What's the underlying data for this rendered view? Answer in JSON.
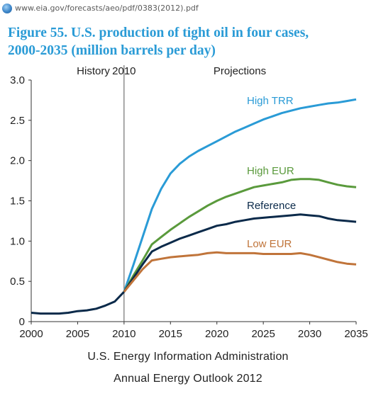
{
  "browser": {
    "url": "www.eia.gov/forecasts/aeo/pdf/0383(2012).pdf"
  },
  "figure": {
    "title_line1": "Figure 55. U.S. production of tight oil in four cases,",
    "title_line2": "2000-2035 (million barrels per day)",
    "title_color": "#2a9bd6"
  },
  "footer": {
    "line1": "U.S. Energy Information Administration",
    "line2": "Annual Energy Outlook 2012"
  },
  "chart_data": {
    "type": "line",
    "title": "",
    "xlabel": "",
    "ylabel": "",
    "xlim": [
      2000,
      2035
    ],
    "ylim": [
      0,
      3.0
    ],
    "xticks": [
      "2000",
      "2005",
      "2010",
      "2015",
      "2020",
      "2025",
      "2030",
      "2035"
    ],
    "yticks": [
      "0",
      "0.5",
      "1.0",
      "1.5",
      "2.0",
      "2.5",
      "3.0"
    ],
    "grid": false,
    "divider": {
      "x": 2010,
      "label": "2010"
    },
    "region_labels": {
      "left": "History",
      "right": "Projections"
    },
    "history": {
      "color": "#0b2a4a",
      "x": [
        2000,
        2001,
        2002,
        2003,
        2004,
        2005,
        2006,
        2007,
        2008,
        2009,
        2010
      ],
      "values": [
        0.11,
        0.1,
        0.1,
        0.1,
        0.11,
        0.13,
        0.14,
        0.16,
        0.2,
        0.25,
        0.37
      ]
    },
    "series": [
      {
        "name": "High TRR",
        "color": "#2a9bd6",
        "x": [
          2010,
          2011,
          2012,
          2013,
          2014,
          2015,
          2016,
          2017,
          2018,
          2019,
          2020,
          2021,
          2022,
          2023,
          2024,
          2025,
          2026,
          2027,
          2028,
          2029,
          2030,
          2031,
          2032,
          2033,
          2034,
          2035
        ],
        "values": [
          0.37,
          0.7,
          1.05,
          1.4,
          1.65,
          1.84,
          1.96,
          2.05,
          2.12,
          2.18,
          2.24,
          2.3,
          2.36,
          2.41,
          2.46,
          2.51,
          2.55,
          2.59,
          2.62,
          2.65,
          2.67,
          2.69,
          2.71,
          2.72,
          2.74,
          2.76
        ]
      },
      {
        "name": "High EUR",
        "color": "#5a9a3c",
        "x": [
          2010,
          2011,
          2012,
          2013,
          2014,
          2015,
          2016,
          2017,
          2018,
          2019,
          2020,
          2021,
          2022,
          2023,
          2024,
          2025,
          2026,
          2027,
          2028,
          2029,
          2030,
          2031,
          2032,
          2033,
          2034,
          2035
        ],
        "values": [
          0.37,
          0.57,
          0.76,
          0.96,
          1.05,
          1.14,
          1.22,
          1.3,
          1.37,
          1.44,
          1.5,
          1.55,
          1.59,
          1.63,
          1.67,
          1.69,
          1.71,
          1.73,
          1.76,
          1.77,
          1.77,
          1.76,
          1.73,
          1.7,
          1.68,
          1.67
        ]
      },
      {
        "name": "Reference",
        "color": "#0b2a4a",
        "x": [
          2010,
          2011,
          2012,
          2013,
          2014,
          2015,
          2016,
          2017,
          2018,
          2019,
          2020,
          2021,
          2022,
          2023,
          2024,
          2025,
          2026,
          2027,
          2028,
          2029,
          2030,
          2031,
          2032,
          2033,
          2034,
          2035
        ],
        "values": [
          0.37,
          0.54,
          0.71,
          0.87,
          0.93,
          0.98,
          1.03,
          1.07,
          1.11,
          1.15,
          1.19,
          1.21,
          1.24,
          1.26,
          1.28,
          1.29,
          1.3,
          1.31,
          1.32,
          1.33,
          1.32,
          1.31,
          1.28,
          1.26,
          1.25,
          1.24
        ]
      },
      {
        "name": "Low EUR",
        "color": "#c0743a",
        "x": [
          2010,
          2011,
          2012,
          2013,
          2014,
          2015,
          2016,
          2017,
          2018,
          2019,
          2020,
          2021,
          2022,
          2023,
          2024,
          2025,
          2026,
          2027,
          2028,
          2029,
          2030,
          2031,
          2032,
          2033,
          2034,
          2035
        ],
        "values": [
          0.37,
          0.51,
          0.65,
          0.76,
          0.78,
          0.8,
          0.81,
          0.82,
          0.83,
          0.85,
          0.86,
          0.85,
          0.85,
          0.85,
          0.85,
          0.84,
          0.84,
          0.84,
          0.84,
          0.85,
          0.83,
          0.8,
          0.77,
          0.74,
          0.72,
          0.71
        ]
      }
    ]
  }
}
